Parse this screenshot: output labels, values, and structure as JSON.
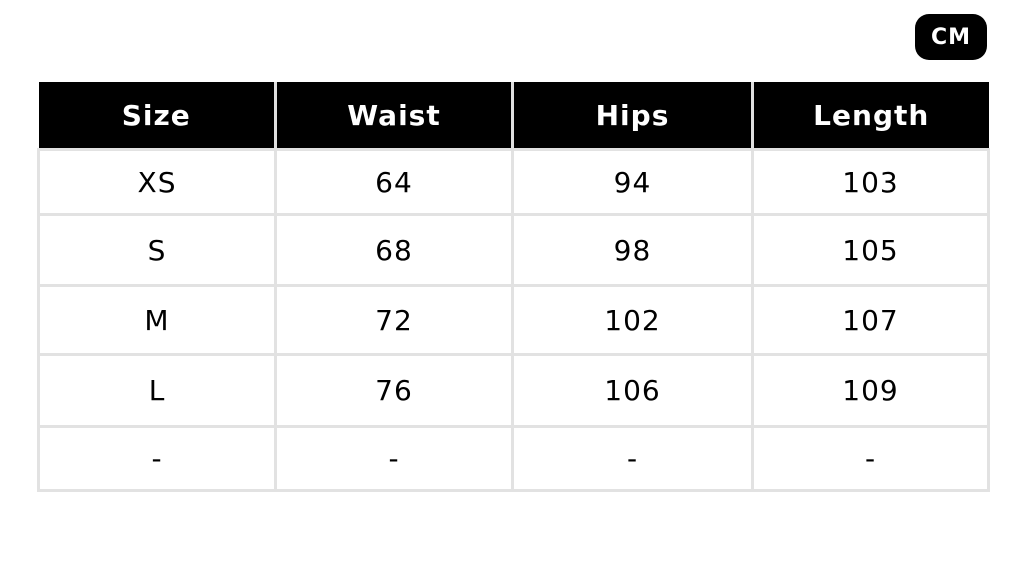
{
  "unit_badge": "CM",
  "table": {
    "headers": [
      "Size",
      "Waist",
      "Hips",
      "Length"
    ],
    "rows": [
      [
        "XS",
        "64",
        "94",
        "103"
      ],
      [
        "S",
        "68",
        "98",
        "105"
      ],
      [
        "M",
        "72",
        "102",
        "107"
      ],
      [
        "L",
        "76",
        "106",
        "109"
      ],
      [
        "-",
        "-",
        "-",
        "-"
      ]
    ]
  },
  "colors": {
    "header_bg": "#000000",
    "header_text": "#ffffff",
    "grid": "#e2e2e2"
  }
}
